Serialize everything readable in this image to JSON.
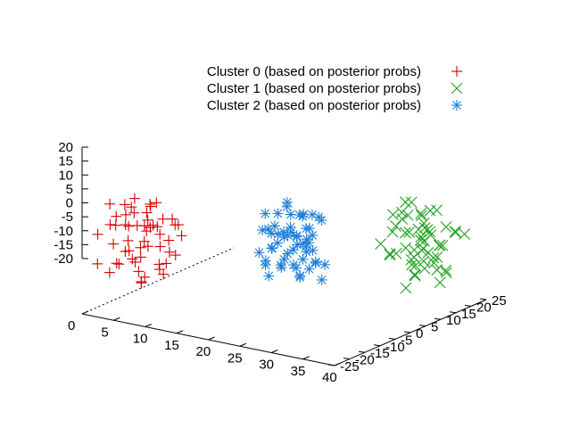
{
  "chart_data": {
    "type": "scatter",
    "title": "",
    "projection": "3d",
    "legend_position": "top-right",
    "axes": {
      "x": {
        "range": [
          0,
          40
        ],
        "ticks": [
          "0",
          "5",
          "10",
          "15",
          "20",
          "25",
          "30",
          "35",
          "40"
        ]
      },
      "y": {
        "range": [
          -25,
          25
        ],
        "ticks": [
          "-25",
          "-20",
          "-15",
          "-10",
          "-5",
          "0",
          "5",
          "10",
          "15",
          "20",
          "25"
        ]
      },
      "z": {
        "range": [
          -20,
          20
        ],
        "ticks": [
          "-20",
          "-15",
          "-10",
          "-5",
          "0",
          "5",
          "10",
          "15",
          "20"
        ]
      }
    },
    "series": [
      {
        "name": "Cluster 0 (based on posterior probs)",
        "color": "#d40000",
        "marker": "plus",
        "points": [
          [
            2,
            -20,
            18
          ],
          [
            4,
            -18,
            10
          ],
          [
            1,
            -22,
            -3
          ],
          [
            6,
            -17,
            5
          ],
          [
            3,
            -15,
            15
          ],
          [
            8,
            -21,
            -5
          ],
          [
            5,
            -12,
            8
          ],
          [
            2,
            -14,
            2
          ],
          [
            7,
            -19,
            12
          ],
          [
            9,
            -16,
            -2
          ],
          [
            4,
            -23,
            6
          ],
          [
            6,
            -13,
            17
          ],
          [
            1,
            -18,
            -8
          ],
          [
            8,
            -11,
            9
          ],
          [
            3,
            -20,
            14
          ],
          [
            10,
            -17,
            3
          ],
          [
            5,
            -24,
            0
          ],
          [
            7,
            -14,
            -6
          ],
          [
            2,
            -12,
            11
          ],
          [
            9,
            -22,
            7
          ],
          [
            4,
            -16,
            19
          ],
          [
            6,
            -20,
            -1
          ],
          [
            8,
            -15,
            13
          ],
          [
            3,
            -10,
            4
          ],
          [
            10,
            -19,
            -4
          ],
          [
            5,
            -13,
            16
          ],
          [
            1,
            -16,
            8
          ],
          [
            7,
            -23,
            2
          ],
          [
            9,
            -12,
            10
          ],
          [
            6,
            -18,
            -9
          ],
          [
            2,
            -11,
            6
          ],
          [
            8,
            -20,
            15
          ],
          [
            4,
            -14,
            -3
          ],
          [
            10,
            -15,
            1
          ],
          [
            3,
            -22,
            12
          ],
          [
            7,
            -17,
            18
          ],
          [
            5,
            -10,
            -7
          ],
          [
            9,
            -18,
            5
          ],
          [
            1,
            -13,
            14
          ],
          [
            6,
            -15,
            9
          ],
          [
            8,
            -23,
            -2
          ],
          [
            4,
            -19,
            11
          ],
          [
            10,
            -13,
            7
          ],
          [
            2,
            -17,
            -5
          ],
          [
            7,
            -11,
            3
          ],
          [
            5,
            -21,
            16
          ],
          [
            3,
            -12,
            -1
          ],
          [
            9,
            -14,
            13
          ],
          [
            6,
            -22,
            4
          ],
          [
            8,
            -16,
            8
          ],
          [
            4,
            -12,
            12
          ],
          [
            2,
            -24,
            9
          ],
          [
            7,
            -20,
            -8
          ],
          [
            10,
            -21,
            14
          ],
          [
            3,
            -17,
            0
          ]
        ]
      },
      {
        "name": "Cluster 1 (based on posterior probs)",
        "color": "#20a020",
        "marker": "cross",
        "points": [
          [
            32,
            15,
            5
          ],
          [
            35,
            18,
            -4
          ],
          [
            30,
            20,
            8
          ],
          [
            36,
            12,
            2
          ],
          [
            33,
            16,
            -10
          ],
          [
            38,
            19,
            6
          ],
          [
            31,
            13,
            12
          ],
          [
            34,
            22,
            -2
          ],
          [
            37,
            15,
            -6
          ],
          [
            29,
            17,
            3
          ],
          [
            35,
            10,
            9
          ],
          [
            32,
            21,
            -8
          ],
          [
            36,
            17,
            14
          ],
          [
            30,
            14,
            -3
          ],
          [
            38,
            13,
            0
          ],
          [
            33,
            19,
            7
          ],
          [
            31,
            23,
            -5
          ],
          [
            37,
            11,
            11
          ],
          [
            34,
            16,
            4
          ],
          [
            36,
            20,
            -9
          ],
          [
            32,
            12,
            -1
          ],
          [
            35,
            14,
            13
          ],
          [
            30,
            18,
            10
          ],
          [
            38,
            16,
            -7
          ],
          [
            33,
            13,
            1
          ],
          [
            31,
            20,
            -4
          ],
          [
            37,
            18,
            8
          ],
          [
            34,
            11,
            -12
          ],
          [
            36,
            15,
            6
          ],
          [
            32,
            17,
            15
          ],
          [
            35,
            21,
            -1
          ],
          [
            30,
            11,
            2
          ],
          [
            38,
            22,
            4
          ],
          [
            33,
            15,
            -6
          ],
          [
            31,
            16,
            9
          ],
          [
            37,
            14,
            -3
          ],
          [
            34,
            19,
            12
          ],
          [
            36,
            13,
            -5
          ],
          [
            32,
            20,
            0
          ],
          [
            35,
            16,
            7
          ],
          [
            30,
            22,
            -8
          ],
          [
            38,
            10,
            3
          ],
          [
            33,
            18,
            11
          ],
          [
            31,
            12,
            -2
          ],
          [
            37,
            21,
            5
          ],
          [
            34,
            14,
            -9
          ],
          [
            36,
            18,
            1
          ],
          [
            32,
            15,
            16
          ],
          [
            35,
            12,
            -4
          ],
          [
            30,
            16,
            6
          ],
          [
            33,
            21,
            3
          ],
          [
            37,
            16,
            -11
          ],
          [
            34,
            17,
            2
          ],
          [
            31,
            19,
            -7
          ],
          [
            36,
            11,
            10
          ]
        ]
      },
      {
        "name": "Cluster 2 (based on posterior probs)",
        "color": "#1f7fd8",
        "marker": "star",
        "points": [
          [
            20,
            0,
            5
          ],
          [
            22,
            2,
            -3
          ],
          [
            18,
            -3,
            8
          ],
          [
            24,
            -1,
            2
          ],
          [
            21,
            3,
            12
          ],
          [
            19,
            1,
            -6
          ],
          [
            23,
            -4,
            10
          ],
          [
            25,
            0,
            -2
          ],
          [
            17,
            2,
            4
          ],
          [
            22,
            -2,
            15
          ],
          [
            20,
            4,
            -8
          ],
          [
            24,
            1,
            7
          ],
          [
            18,
            0,
            0
          ],
          [
            21,
            -3,
            -4
          ],
          [
            23,
            3,
            13
          ],
          [
            19,
            -1,
            9
          ],
          [
            25,
            2,
            -9
          ],
          [
            20,
            -4,
            3
          ],
          [
            22,
            0,
            6
          ],
          [
            17,
            -2,
            -1
          ],
          [
            24,
            4,
            11
          ],
          [
            21,
            1,
            -5
          ],
          [
            19,
            3,
            14
          ],
          [
            23,
            -1,
            -7
          ],
          [
            18,
            2,
            1
          ],
          [
            25,
            -3,
            8
          ],
          [
            20,
            0,
            -3
          ],
          [
            22,
            4,
            2
          ],
          [
            24,
            -2,
            16
          ],
          [
            21,
            2,
            5
          ],
          [
            19,
            -4,
            -2
          ],
          [
            23,
            1,
            9
          ],
          [
            17,
            0,
            12
          ],
          [
            25,
            3,
            -4
          ],
          [
            20,
            -2,
            7
          ],
          [
            22,
            1,
            -9
          ],
          [
            18,
            4,
            4
          ],
          [
            24,
            0,
            10
          ],
          [
            21,
            -1,
            0
          ],
          [
            23,
            2,
            -6
          ],
          [
            19,
            0,
            13
          ],
          [
            25,
            -1,
            3
          ],
          [
            20,
            3,
            -1
          ],
          [
            22,
            -3,
            8
          ],
          [
            17,
            1,
            6
          ],
          [
            24,
            2,
            -3
          ],
          [
            21,
            4,
            11
          ],
          [
            18,
            -2,
            -5
          ],
          [
            23,
            0,
            4
          ],
          [
            20,
            1,
            17
          ],
          [
            22,
            3,
            1
          ],
          [
            19,
            -3,
            -8
          ],
          [
            24,
            -4,
            6
          ],
          [
            21,
            0,
            9
          ],
          [
            25,
            1,
            14
          ]
        ]
      }
    ]
  }
}
